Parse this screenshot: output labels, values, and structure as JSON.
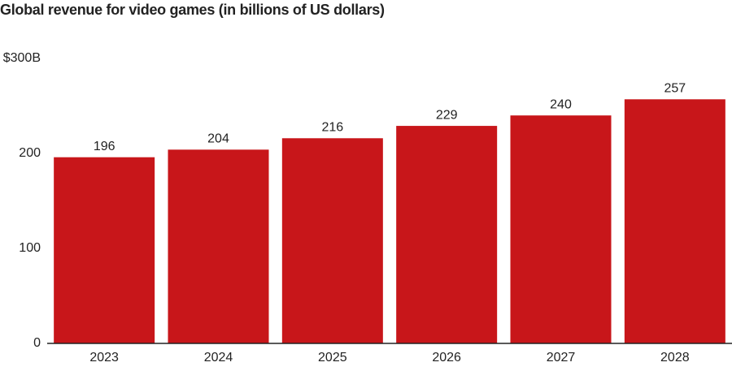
{
  "chart_data": {
    "type": "bar",
    "title": "Global revenue for video games (in billions of US dollars)",
    "categories": [
      "2023",
      "2024",
      "2025",
      "2026",
      "2027",
      "2028"
    ],
    "values": [
      196,
      204,
      216,
      229,
      240,
      257
    ],
    "color": "#c8161a",
    "ylim": [
      0,
      300
    ],
    "yticks": [
      0,
      100,
      200,
      {
        "value": 300,
        "label": "$300B"
      }
    ],
    "grid": false
  }
}
